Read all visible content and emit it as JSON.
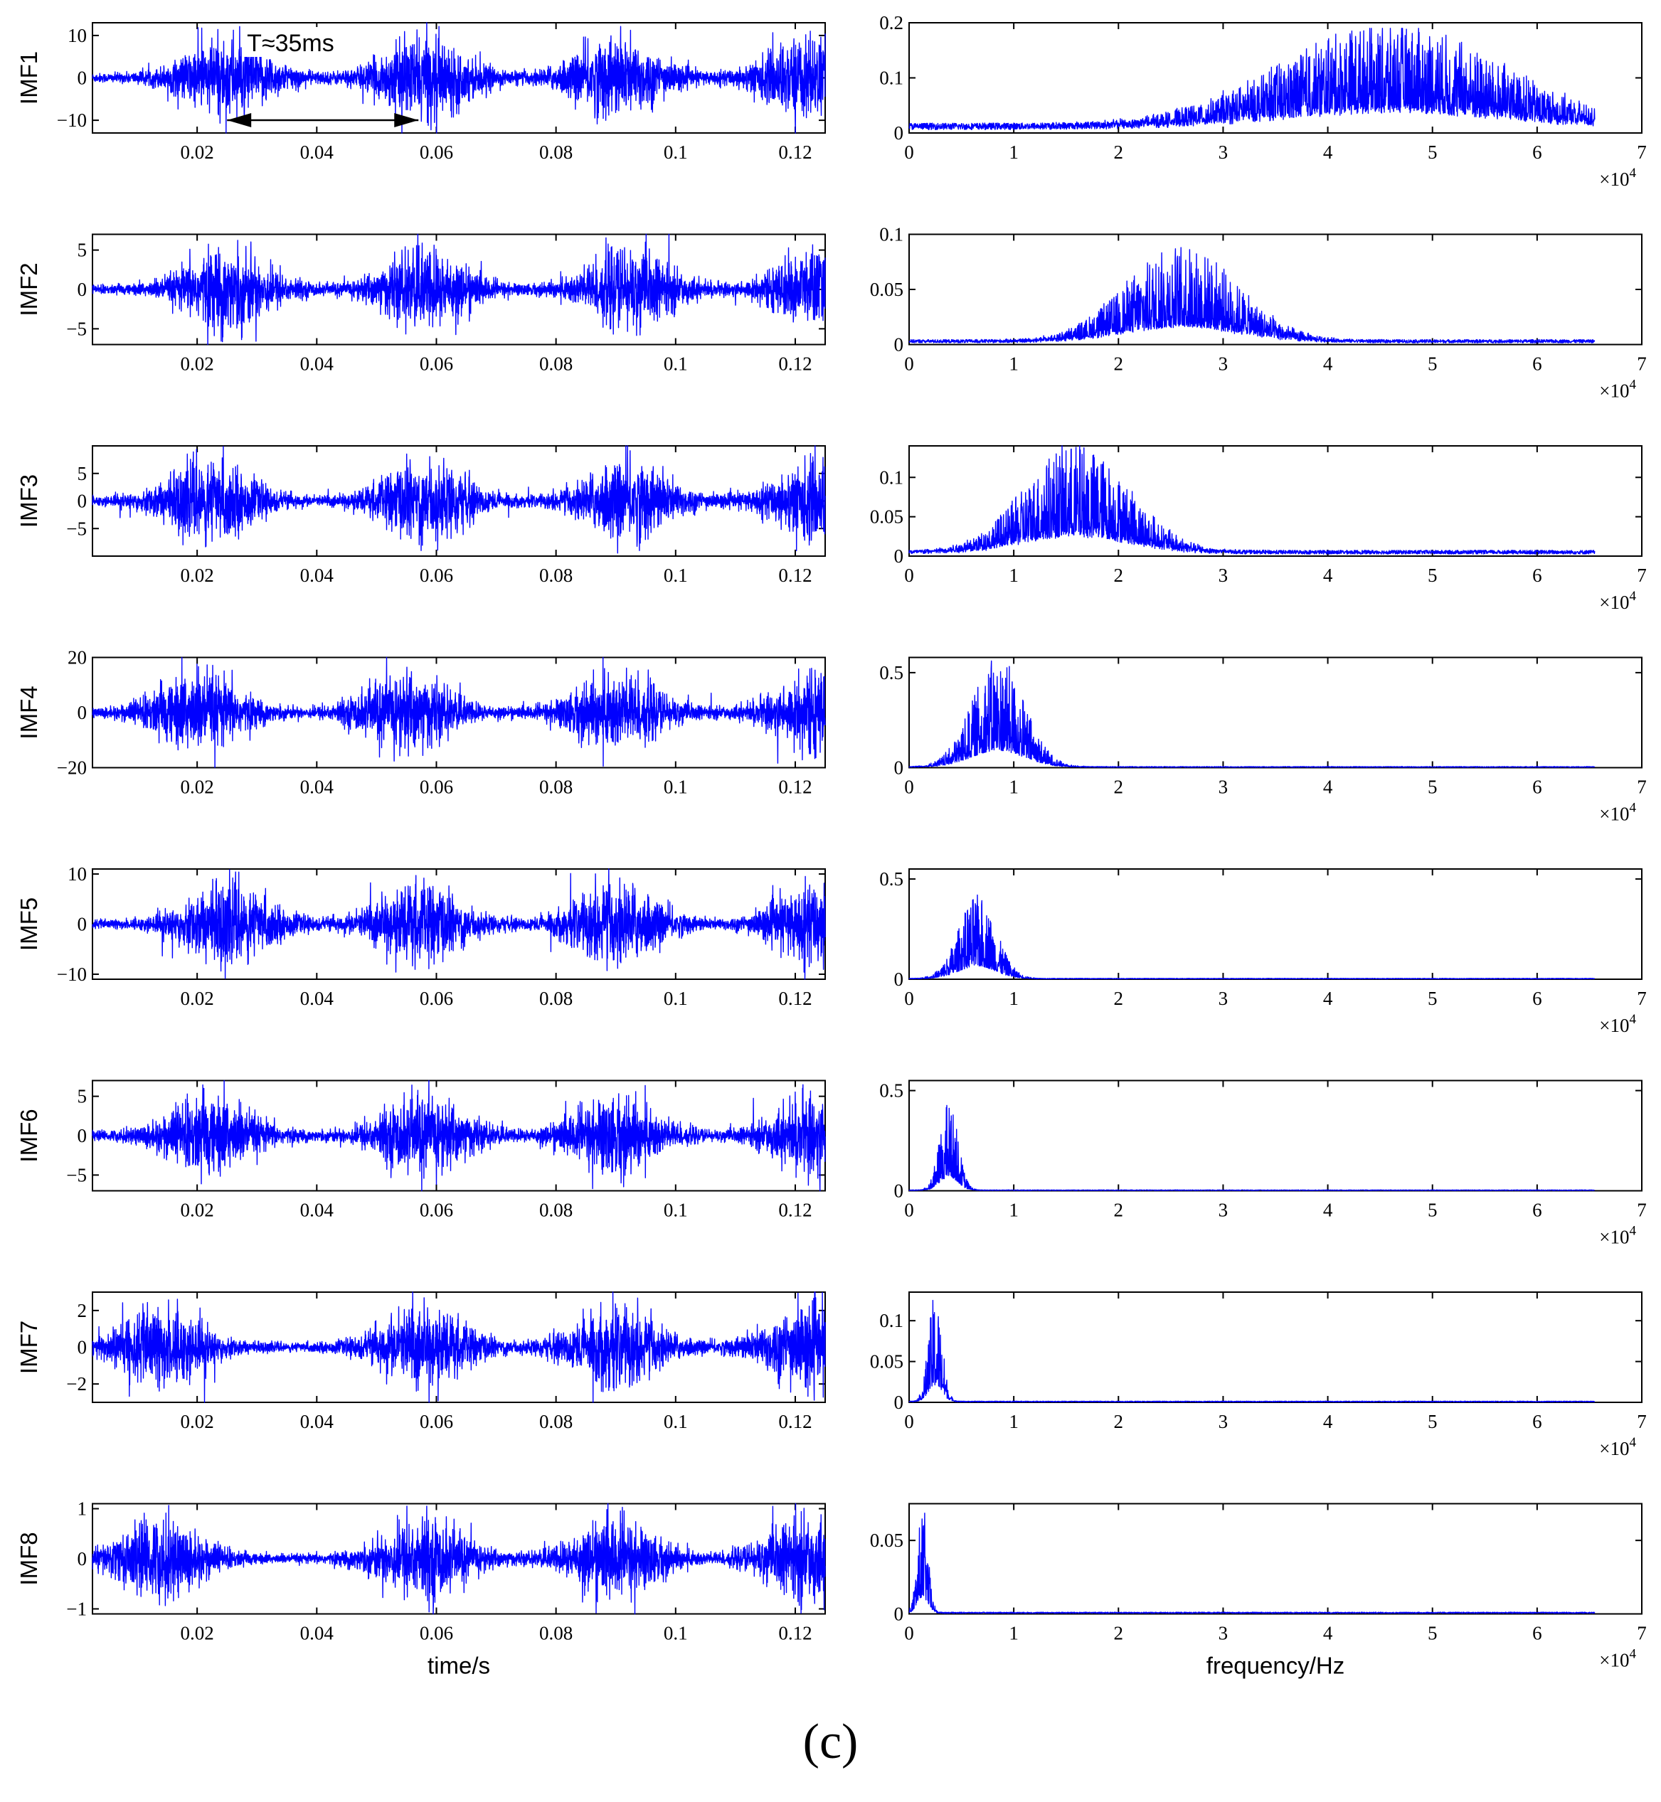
{
  "figure": {
    "panel_letter": "(c)",
    "colors": {
      "trace": "#0000ff",
      "axes": "#000000"
    },
    "time_axis_label": "time/s",
    "freq_axis_label": "frequency/Hz",
    "freq_exponent": "×10",
    "freq_exponent_power": "4",
    "annotation": {
      "text": "T≈35ms",
      "arrow_from_s": 0.025,
      "arrow_to_s": 0.057,
      "row": "IMF1"
    }
  },
  "chart_data": [
    {
      "id": "imf1-time",
      "type": "line",
      "row": "IMF1",
      "ylabel": "IMF1",
      "xlim": [
        0.0025,
        0.125
      ],
      "ylim": [
        -13,
        13
      ],
      "xticks": [
        "0.02",
        "0.04",
        "0.06",
        "0.08",
        "0.1",
        "0.12"
      ],
      "xtick_values": [
        0.02,
        0.04,
        0.06,
        0.08,
        0.1,
        0.12
      ],
      "yticks": [
        "10",
        "0",
        "−10"
      ],
      "ytick_values": [
        10,
        0,
        -10
      ],
      "bursts_s": [
        0.025,
        0.058,
        0.09,
        0.122
      ],
      "peak_amplitude": 13
    },
    {
      "id": "imf1-spectrum",
      "type": "line",
      "row": "IMF1",
      "xlim": [
        0,
        7
      ],
      "ylim": [
        0,
        0.2
      ],
      "xticks": [
        "0",
        "1",
        "2",
        "3",
        "4",
        "5",
        "6",
        "7"
      ],
      "xtick_values": [
        0,
        1,
        2,
        3,
        4,
        5,
        6,
        7
      ],
      "yticks": [
        "0.2",
        "0.1",
        "0"
      ],
      "ytick_values": [
        0.2,
        0.1,
        0
      ],
      "band_center_1e4Hz": 4.6,
      "band_width_1e4Hz": 1.5,
      "peak": 0.19,
      "floor": 0.012,
      "cutoff_1e4Hz": 6.55
    },
    {
      "id": "imf2-time",
      "type": "line",
      "row": "IMF2",
      "ylabel": "IMF2",
      "xlim": [
        0.0025,
        0.125
      ],
      "ylim": [
        -7,
        7
      ],
      "xticks": [
        "0.02",
        "0.04",
        "0.06",
        "0.08",
        "0.1",
        "0.12"
      ],
      "xtick_values": [
        0.02,
        0.04,
        0.06,
        0.08,
        0.1,
        0.12
      ],
      "yticks": [
        "5",
        "0",
        "−5"
      ],
      "ytick_values": [
        5,
        0,
        -5
      ],
      "bursts_s": [
        0.025,
        0.058,
        0.092,
        0.124
      ],
      "peak_amplitude": 7
    },
    {
      "id": "imf2-spectrum",
      "type": "line",
      "row": "IMF2",
      "xlim": [
        0,
        7
      ],
      "ylim": [
        0,
        0.1
      ],
      "xticks": [
        "0",
        "1",
        "2",
        "3",
        "4",
        "5",
        "6",
        "7"
      ],
      "xtick_values": [
        0,
        1,
        2,
        3,
        4,
        5,
        6,
        7
      ],
      "yticks": [
        "0.1",
        "0.05",
        "0"
      ],
      "ytick_values": [
        0.1,
        0.05,
        0
      ],
      "band_center_1e4Hz": 2.6,
      "band_width_1e4Hz": 0.75,
      "peak": 0.088,
      "floor": 0.003,
      "cutoff_1e4Hz": 6.55
    },
    {
      "id": "imf3-time",
      "type": "line",
      "row": "IMF3",
      "ylabel": "IMF3",
      "xlim": [
        0.0025,
        0.125
      ],
      "ylim": [
        -10,
        10
      ],
      "xticks": [
        "0.02",
        "0.04",
        "0.06",
        "0.08",
        "0.1",
        "0.12"
      ],
      "xtick_values": [
        0.02,
        0.04,
        0.06,
        0.08,
        0.1,
        0.12
      ],
      "yticks": [
        "5",
        "0",
        "−5"
      ],
      "ytick_values": [
        5,
        0,
        -5
      ],
      "bursts_s": [
        0.022,
        0.058,
        0.092,
        0.124
      ],
      "peak_amplitude": 10
    },
    {
      "id": "imf3-spectrum",
      "type": "line",
      "row": "IMF3",
      "xlim": [
        0,
        7
      ],
      "ylim": [
        0,
        0.14
      ],
      "xticks": [
        "0",
        "1",
        "2",
        "3",
        "4",
        "5",
        "6",
        "7"
      ],
      "xtick_values": [
        0,
        1,
        2,
        3,
        4,
        5,
        6,
        7
      ],
      "yticks": [
        "0.1",
        "0.05",
        "0"
      ],
      "ytick_values": [
        0.1,
        0.05,
        0
      ],
      "band_center_1e4Hz": 1.6,
      "band_width_1e4Hz": 0.7,
      "peak": 0.14,
      "floor": 0.005,
      "cutoff_1e4Hz": 6.55
    },
    {
      "id": "imf4-time",
      "type": "line",
      "row": "IMF4",
      "ylabel": "IMF4",
      "xlim": [
        0.0025,
        0.125
      ],
      "ylim": [
        -20,
        20
      ],
      "xticks": [
        "0.02",
        "0.04",
        "0.06",
        "0.08",
        "0.1",
        "0.12"
      ],
      "xtick_values": [
        0.02,
        0.04,
        0.06,
        0.08,
        0.1,
        0.12
      ],
      "yticks": [
        "20",
        "0",
        "−20"
      ],
      "ytick_values": [
        20,
        0,
        -20
      ],
      "bursts_s": [
        0.02,
        0.055,
        0.09,
        0.124
      ],
      "peak_amplitude": 20
    },
    {
      "id": "imf4-spectrum",
      "type": "line",
      "row": "IMF4",
      "xlim": [
        0,
        7
      ],
      "ylim": [
        0,
        0.58
      ],
      "xticks": [
        "0",
        "1",
        "2",
        "3",
        "4",
        "5",
        "6",
        "7"
      ],
      "xtick_values": [
        0,
        1,
        2,
        3,
        4,
        5,
        6,
        7
      ],
      "yticks": [
        "0.5",
        "0"
      ],
      "ytick_values": [
        0.5,
        0
      ],
      "band_center_1e4Hz": 0.85,
      "band_width_1e4Hz": 0.35,
      "peak": 0.58,
      "floor": 0.004,
      "cutoff_1e4Hz": 6.55
    },
    {
      "id": "imf5-time",
      "type": "line",
      "row": "IMF5",
      "ylabel": "IMF5",
      "xlim": [
        0.0025,
        0.125
      ],
      "ylim": [
        -11,
        11
      ],
      "xticks": [
        "0.02",
        "0.04",
        "0.06",
        "0.08",
        "0.1",
        "0.12"
      ],
      "xtick_values": [
        0.02,
        0.04,
        0.06,
        0.08,
        0.1,
        0.12
      ],
      "yticks": [
        "10",
        "0",
        "−10"
      ],
      "ytick_values": [
        10,
        0,
        -10
      ],
      "bursts_s": [
        0.025,
        0.057,
        0.09,
        0.124
      ],
      "peak_amplitude": 11
    },
    {
      "id": "imf5-spectrum",
      "type": "line",
      "row": "IMF5",
      "xlim": [
        0,
        7
      ],
      "ylim": [
        0,
        0.55
      ],
      "xticks": [
        "0",
        "1",
        "2",
        "3",
        "4",
        "5",
        "6",
        "7"
      ],
      "xtick_values": [
        0,
        1,
        2,
        3,
        4,
        5,
        6,
        7
      ],
      "yticks": [
        "0.5",
        "0"
      ],
      "ytick_values": [
        0.5,
        0
      ],
      "band_center_1e4Hz": 0.65,
      "band_width_1e4Hz": 0.25,
      "peak": 0.42,
      "floor": 0.003,
      "cutoff_1e4Hz": 6.55
    },
    {
      "id": "imf6-time",
      "type": "line",
      "row": "IMF6",
      "ylabel": "IMF6",
      "xlim": [
        0.0025,
        0.125
      ],
      "ylim": [
        -7,
        7
      ],
      "xticks": [
        "0.02",
        "0.04",
        "0.06",
        "0.08",
        "0.1",
        "0.12"
      ],
      "xtick_values": [
        0.02,
        0.04,
        0.06,
        0.08,
        0.1,
        0.12
      ],
      "yticks": [
        "5",
        "0",
        "−5"
      ],
      "ytick_values": [
        5,
        0,
        -5
      ],
      "bursts_s": [
        0.022,
        0.058,
        0.09,
        0.124
      ],
      "peak_amplitude": 7
    },
    {
      "id": "imf6-spectrum",
      "type": "line",
      "row": "IMF6",
      "xlim": [
        0,
        7
      ],
      "ylim": [
        0,
        0.55
      ],
      "xticks": [
        "0",
        "1",
        "2",
        "3",
        "4",
        "5",
        "6",
        "7"
      ],
      "xtick_values": [
        0,
        1,
        2,
        3,
        4,
        5,
        6,
        7
      ],
      "yticks": [
        "0.5",
        "0"
      ],
      "ytick_values": [
        0.5,
        0
      ],
      "band_center_1e4Hz": 0.38,
      "band_width_1e4Hz": 0.12,
      "peak": 0.45,
      "floor": 0.003,
      "cutoff_1e4Hz": 6.55
    },
    {
      "id": "imf7-time",
      "type": "line",
      "row": "IMF7",
      "ylabel": "IMF7",
      "xlim": [
        0.0025,
        0.125
      ],
      "ylim": [
        -3,
        3
      ],
      "xticks": [
        "0.02",
        "0.04",
        "0.06",
        "0.08",
        "0.1",
        "0.12"
      ],
      "xtick_values": [
        0.02,
        0.04,
        0.06,
        0.08,
        0.1,
        0.12
      ],
      "yticks": [
        "2",
        "0",
        "−2"
      ],
      "ytick_values": [
        2,
        0,
        -2
      ],
      "bursts_s": [
        0.014,
        0.058,
        0.09,
        0.122
      ],
      "peak_amplitude": 3
    },
    {
      "id": "imf7-spectrum",
      "type": "line",
      "row": "IMF7",
      "xlim": [
        0,
        7
      ],
      "ylim": [
        0,
        0.135
      ],
      "xticks": [
        "0",
        "1",
        "2",
        "3",
        "4",
        "5",
        "6",
        "7"
      ],
      "xtick_values": [
        0,
        1,
        2,
        3,
        4,
        5,
        6,
        7
      ],
      "yticks": [
        "0.1",
        "0.05",
        "0"
      ],
      "ytick_values": [
        0.1,
        0.05,
        0
      ],
      "band_center_1e4Hz": 0.25,
      "band_width_1e4Hz": 0.09,
      "peak": 0.135,
      "floor": 0.001,
      "cutoff_1e4Hz": 6.55
    },
    {
      "id": "imf8-time",
      "type": "line",
      "row": "IMF8",
      "ylabel": "IMF8",
      "xlim": [
        0.0025,
        0.125
      ],
      "ylim": [
        -1.1,
        1.1
      ],
      "xticks": [
        "0.02",
        "0.04",
        "0.06",
        "0.08",
        "0.1",
        "0.12"
      ],
      "xtick_values": [
        0.02,
        0.04,
        0.06,
        0.08,
        0.1,
        0.12
      ],
      "yticks": [
        "1",
        "0",
        "−1"
      ],
      "ytick_values": [
        1,
        0,
        -1
      ],
      "bursts_s": [
        0.014,
        0.058,
        0.09,
        0.122
      ],
      "peak_amplitude": 1.1
    },
    {
      "id": "imf8-spectrum",
      "type": "line",
      "row": "IMF8",
      "xlim": [
        0,
        7
      ],
      "ylim": [
        0,
        0.075
      ],
      "xticks": [
        "0",
        "1",
        "2",
        "3",
        "4",
        "5",
        "6",
        "7"
      ],
      "xtick_values": [
        0,
        1,
        2,
        3,
        4,
        5,
        6,
        7
      ],
      "yticks": [
        "0.05",
        "0"
      ],
      "ytick_values": [
        0.05,
        0
      ],
      "band_center_1e4Hz": 0.13,
      "band_width_1e4Hz": 0.07,
      "peak": 0.073,
      "floor": 0.0008,
      "cutoff_1e4Hz": 6.55
    }
  ]
}
